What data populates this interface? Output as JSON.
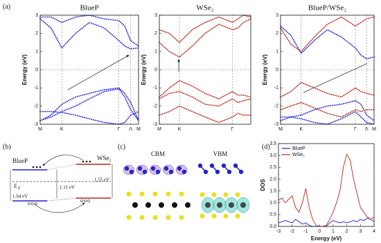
{
  "panel_labels": [
    "(a)",
    "(b)",
    "(c)",
    "(d)"
  ],
  "chart_data": [
    {
      "type": "line",
      "title": "BlueP",
      "y_label": "Energy (eV)",
      "line_style": "dotted",
      "grid": true,
      "zero_line": true,
      "x": [
        0,
        0.11,
        0.22,
        0.36,
        0.5,
        0.65,
        0.8,
        0.86,
        0.92,
        1
      ],
      "xlim": [
        0,
        1
      ],
      "ylim": [
        -3,
        3
      ],
      "yticks": [
        -3,
        -2,
        -1,
        0,
        1,
        2,
        3
      ],
      "xticks": [
        {
          "value": 0,
          "label": "M"
        },
        {
          "value": 0.22,
          "label": "K"
        },
        {
          "value": 0.8,
          "label": "Γ"
        },
        {
          "value": 0.92,
          "label": "Λ"
        },
        {
          "value": 1,
          "label": "M"
        }
      ],
      "series": [
        {
          "color": "#1f1fd6",
          "values": [
            2.8,
            2.3,
            1.2,
            2.0,
            2.6,
            2.3,
            1.6,
            1.3,
            1.15,
            1.2
          ]
        },
        {
          "color": "#1f1fd6",
          "values": [
            2.9,
            2.9,
            2.6,
            2.9,
            3.0,
            2.8,
            2.7,
            2.4,
            1.6,
            1.3
          ]
        },
        {
          "color": "#1f1fd6",
          "values": [
            -2.8,
            -2.5,
            -1.9,
            -1.5,
            -1.3,
            -1.1,
            -1.0,
            -1.3,
            -1.8,
            -2.8
          ]
        },
        {
          "color": "#1f1fd6",
          "values": [
            -2.8,
            -2.6,
            -2.3,
            -2.0,
            -1.6,
            -1.2,
            -1.05,
            -1.5,
            -2.2,
            -2.8
          ]
        },
        {
          "color": "#1f1fd6",
          "values": [
            -2.3,
            -2.3,
            -2.35,
            -2.5,
            -2.7,
            -2.9,
            -3.0,
            -2.9,
            -2.5,
            -2.3
          ]
        }
      ]
    },
    {
      "type": "line",
      "title": "WSe₂",
      "y_label": "Energy (eV)",
      "line_style": "dotted",
      "grid": true,
      "zero_line": true,
      "x": [
        0,
        0.11,
        0.22,
        0.36,
        0.5,
        0.65,
        0.8,
        0.86,
        0.92,
        1
      ],
      "xlim": [
        0,
        1
      ],
      "ylim": [
        -3,
        3
      ],
      "yticks": [
        -3,
        -2,
        -1,
        0,
        1,
        2,
        3
      ],
      "xticks": [
        {
          "value": 0,
          "label": "M"
        },
        {
          "value": 0.22,
          "label": "K"
        },
        {
          "value": 0.8,
          "label": "Γ"
        }
      ],
      "series": [
        {
          "color": "#b5261a",
          "values": [
            1.5,
            1.0,
            0.7,
            1.3,
            2.0,
            2.5,
            2.2,
            2.3,
            2.6,
            2.8
          ]
        },
        {
          "color": "#b5261a",
          "values": [
            2.2,
            2.0,
            1.5,
            2.2,
            2.6,
            2.9,
            2.6,
            2.8,
            3.0,
            2.9
          ]
        },
        {
          "color": "#b5261a",
          "values": [
            -1.5,
            -1.0,
            -0.6,
            -0.9,
            -1.3,
            -1.6,
            -1.2,
            -1.4,
            -1.4,
            -1.5
          ]
        },
        {
          "color": "#b5261a",
          "values": [
            -1.6,
            -1.3,
            -1.2,
            -1.5,
            -1.9,
            -2.0,
            -1.6,
            -1.8,
            -1.7,
            -1.6
          ]
        },
        {
          "color": "#b5261a",
          "values": [
            -2.5,
            -2.3,
            -2.0,
            -2.3,
            -2.6,
            -2.9,
            -2.6,
            -2.4,
            -2.5,
            -2.5
          ]
        }
      ]
    },
    {
      "type": "line",
      "title": "BlueP/WSe₂",
      "y_label": "Energy (eV)",
      "line_style": "dotted",
      "grid": true,
      "zero_line": true,
      "x": [
        0,
        0.11,
        0.22,
        0.36,
        0.5,
        0.65,
        0.8,
        0.86,
        0.92,
        1
      ],
      "xlim": [
        0,
        1
      ],
      "ylim": [
        -3,
        3
      ],
      "yticks": [
        -3,
        -2,
        -1,
        0,
        1,
        2,
        3
      ],
      "xticks": [
        {
          "value": 0,
          "label": "M"
        },
        {
          "value": 0.22,
          "label": "K"
        },
        {
          "value": 0.8,
          "label": "Γ"
        },
        {
          "value": 0.92,
          "label": "Λ"
        },
        {
          "value": 1,
          "label": "M"
        }
      ],
      "series": [
        {
          "color": "#1f1fd6",
          "values": [
            2.4,
            1.9,
            0.9,
            1.6,
            2.2,
            1.8,
            1.2,
            0.8,
            0.6,
            0.7
          ]
        },
        {
          "color": "#1f1fd6",
          "values": [
            -2.8,
            -2.6,
            -2.5,
            -2.2,
            -2.0,
            -1.9,
            -1.7,
            -1.9,
            -2.5,
            -2.8
          ]
        },
        {
          "color": "#1f1fd6",
          "values": [
            -2.6,
            -2.6,
            -2.7,
            -2.9,
            -3.0,
            -2.7,
            -2.3,
            -2.6,
            -2.9,
            -3.0
          ]
        },
        {
          "color": "#b5261a",
          "values": [
            2.3,
            1.4,
            1.0,
            1.8,
            2.5,
            2.9,
            2.4,
            2.6,
            2.8,
            2.9
          ]
        },
        {
          "color": "#b5261a",
          "values": [
            -1.5,
            -1.2,
            -0.7,
            -1.0,
            -1.3,
            -1.5,
            -1.0,
            -1.2,
            -1.3,
            -1.4
          ]
        },
        {
          "color": "#b5261a",
          "values": [
            -2.2,
            -2.0,
            -1.8,
            -2.1,
            -2.4,
            -2.6,
            -2.2,
            -2.3,
            -2.2,
            -2.2
          ]
        }
      ]
    },
    {
      "type": "line",
      "x_label": "Energy (eV)",
      "y_label": "DOS",
      "line_style": "solid",
      "legend": "upper left",
      "x": [
        -3,
        -2.75,
        -2.5,
        -2.25,
        -2,
        -1.75,
        -1.5,
        -1.25,
        -1,
        -0.75,
        -0.5,
        -0.25,
        0,
        0.25,
        0.5,
        0.75,
        1,
        1.25,
        1.5,
        1.75,
        2,
        2.25,
        2.5,
        2.75,
        3,
        3.25,
        3.5,
        3.75,
        4
      ],
      "xlim": [
        -3,
        4
      ],
      "ylim": [
        0,
        3.5
      ],
      "xticks": [
        -3,
        -2,
        -1,
        0,
        1,
        2,
        3,
        4
      ],
      "yticks": [
        {
          "value": 0,
          "label": "0.0"
        },
        0.5,
        {
          "value": 1,
          "label": "1.0"
        },
        1.5,
        {
          "value": 2,
          "label": "2.0"
        },
        2.5,
        {
          "value": 3,
          "label": "3.0"
        },
        3.5
      ],
      "series": [
        {
          "name": "BlueP",
          "color": "#1f1fd6",
          "values": [
            0.15,
            0.2,
            0.25,
            0.2,
            0.15,
            0.3,
            0.2,
            0.1,
            0.15,
            0.05,
            0,
            0,
            0,
            0,
            0,
            0.15,
            0.25,
            0.2,
            0.15,
            0.2,
            0.15,
            0.2,
            0.25,
            0.2,
            0.3,
            0.25,
            0.35,
            0.3,
            0.2
          ]
        },
        {
          "name": "WSe₂",
          "color": "#b5261a",
          "values": [
            1.1,
            1.2,
            1.0,
            1.15,
            1.3,
            0.8,
            0.6,
            1.0,
            1.6,
            0.8,
            0.3,
            0.05,
            0,
            0,
            0.05,
            0.3,
            0.6,
            1.0,
            1.5,
            2.5,
            3.05,
            2.8,
            2.0,
            1.4,
            0.8,
            0.6,
            0.4,
            0.3,
            0.4
          ]
        }
      ]
    }
  ],
  "panel_b": {
    "left_label": "BlueP",
    "right_label": "WSe₂",
    "fermi_level": {
      "symbol": "E",
      "subscript": "F"
    },
    "gap_left": "1.94 eV",
    "gap_middle": "1.11 eV",
    "gap_right": "1.55 eV"
  },
  "panel_c": {
    "left_title": "CBM",
    "right_title": "VBM"
  }
}
